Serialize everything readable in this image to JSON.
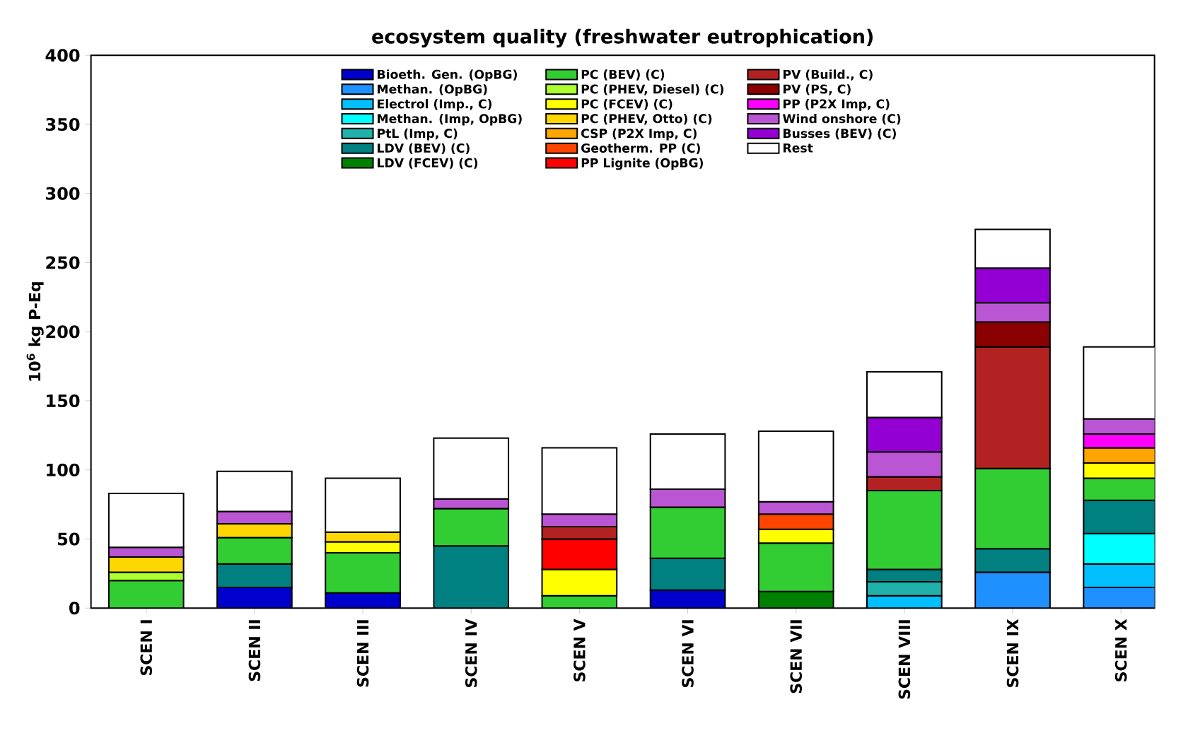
{
  "chart_data": {
    "type": "bar",
    "stacked": true,
    "title": "ecosystem quality (freshwater eutrophication)",
    "ylabel": "10$^{6}$ kg P-Eq",
    "categories": [
      "SCEN I",
      "SCEN II",
      "SCEN III",
      "SCEN IV",
      "SCEN V",
      "SCEN VI",
      "SCEN VII",
      "SCEN VIII",
      "SCEN IX",
      "SCEN X"
    ],
    "ylim": [
      0,
      400
    ],
    "yticks": [
      0,
      50,
      100,
      150,
      200,
      250,
      300,
      350,
      400
    ],
    "legend": "top",
    "grid": false,
    "series": [
      {
        "name": "Bioeth. Gen. (OpBG)",
        "color": "#0000cd",
        "values": [
          null,
          15,
          11,
          null,
          null,
          13,
          null,
          null,
          null,
          null
        ]
      },
      {
        "name": "Methan. (OpBG)",
        "color": "#1e90ff",
        "values": [
          null,
          null,
          null,
          null,
          null,
          null,
          null,
          null,
          26,
          15
        ]
      },
      {
        "name": "Electrol (Imp., C)",
        "color": "#00bfff",
        "values": [
          null,
          null,
          null,
          null,
          null,
          null,
          null,
          9,
          null,
          17
        ]
      },
      {
        "name": "Methan. (Imp, OpBG)",
        "color": "#00ffff",
        "values": [
          null,
          null,
          null,
          null,
          null,
          null,
          null,
          null,
          null,
          22
        ]
      },
      {
        "name": "PtL (Imp, C)",
        "color": "#20b2aa",
        "values": [
          null,
          null,
          null,
          null,
          null,
          null,
          null,
          10,
          null,
          null
        ]
      },
      {
        "name": "LDV (BEV) (C)",
        "color": "#008080",
        "values": [
          null,
          17,
          null,
          45,
          null,
          23,
          null,
          9,
          17,
          24
        ]
      },
      {
        "name": "LDV (FCEV) (C)",
        "color": "#008000",
        "values": [
          null,
          null,
          null,
          null,
          null,
          null,
          12,
          null,
          null,
          null
        ]
      },
      {
        "name": "PC (BEV) (C)",
        "color": "#32cd32",
        "values": [
          20,
          19,
          29,
          27,
          9,
          37,
          35,
          57,
          58,
          16
        ]
      },
      {
        "name": "PC (PHEV, Diesel) (C)",
        "color": "#adff2f",
        "values": [
          6,
          null,
          null,
          null,
          null,
          null,
          null,
          null,
          null,
          null
        ]
      },
      {
        "name": "PC (FCEV) (C)",
        "color": "#ffff00",
        "values": [
          null,
          null,
          8,
          null,
          19,
          null,
          10,
          null,
          null,
          11
        ]
      },
      {
        "name": "PC (PHEV, Otto) (C)",
        "color": "#ffd700",
        "values": [
          11,
          10,
          7,
          null,
          null,
          null,
          null,
          null,
          null,
          null
        ]
      },
      {
        "name": "CSP (P2X Imp, C)",
        "color": "#ffa500",
        "values": [
          null,
          null,
          null,
          null,
          null,
          null,
          null,
          null,
          null,
          11
        ]
      },
      {
        "name": "Geotherm. PP (C)",
        "color": "#ff4500",
        "values": [
          null,
          null,
          null,
          null,
          null,
          null,
          11,
          null,
          null,
          null
        ]
      },
      {
        "name": "PP Lignite (OpBG)",
        "color": "#ff0000",
        "values": [
          null,
          null,
          null,
          null,
          22,
          null,
          null,
          null,
          null,
          null
        ]
      },
      {
        "name": "PV (Build., C)",
        "color": "#b22222",
        "values": [
          null,
          null,
          null,
          null,
          9,
          null,
          null,
          10,
          88,
          null
        ]
      },
      {
        "name": "PV (PS, C)",
        "color": "#8b0000",
        "values": [
          null,
          null,
          null,
          null,
          null,
          null,
          null,
          null,
          18,
          null
        ]
      },
      {
        "name": "PP (P2X Imp, C)",
        "color": "#ff00ff",
        "values": [
          null,
          null,
          null,
          null,
          null,
          null,
          null,
          null,
          null,
          10
        ]
      },
      {
        "name": "Wind onshore (C)",
        "color": "#ba55d3",
        "values": [
          7,
          9,
          null,
          7,
          9,
          13,
          9,
          18,
          14,
          11
        ]
      },
      {
        "name": "Busses (BEV) (C)",
        "color": "#9400d3",
        "values": [
          null,
          null,
          null,
          null,
          null,
          null,
          null,
          25,
          25,
          null
        ]
      },
      {
        "name": "Rest",
        "color": "#ffffff",
        "values": [
          39,
          29,
          39,
          44,
          48,
          40,
          51,
          33,
          28,
          52
        ]
      }
    ]
  }
}
